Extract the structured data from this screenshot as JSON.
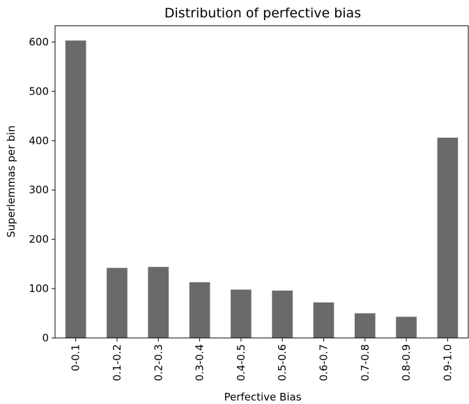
{
  "chart_data": {
    "type": "bar",
    "title": "Distribution of perfective bias",
    "xlabel": "Perfective Bias",
    "ylabel": "Superlemmas per bin",
    "categories": [
      "0-0.1",
      "0.1-0.2",
      "0.2-0.3",
      "0.3-0.4",
      "0.4-0.5",
      "0.5-0.6",
      "0.6-0.7",
      "0.7-0.8",
      "0.8-0.9",
      "0.9-1.0"
    ],
    "values": [
      603,
      142,
      144,
      113,
      98,
      96,
      72,
      50,
      43,
      406
    ],
    "ylim": [
      0,
      633
    ],
    "yticks": [
      0,
      100,
      200,
      300,
      400,
      500,
      600
    ],
    "bar_color": "#6a6a6a",
    "grid": false,
    "legend": false
  }
}
